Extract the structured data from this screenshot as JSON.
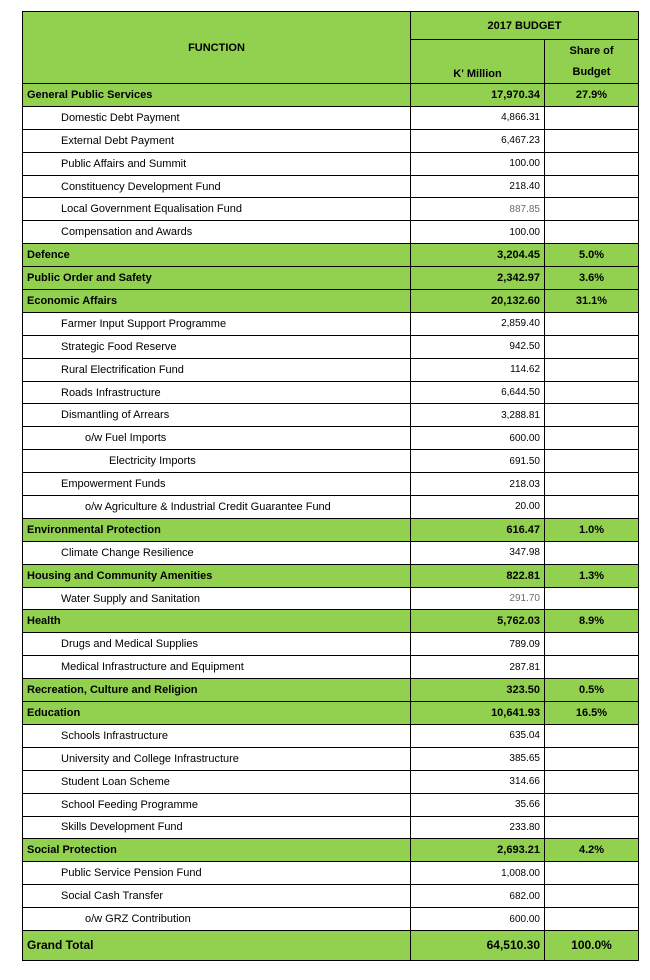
{
  "header": {
    "function_label": "FUNCTION",
    "budget_label": "2017 BUDGET",
    "kmillion_label": "K' Million",
    "share_label_1": "Share of",
    "share_label_2": "Budget"
  },
  "rows": [
    {
      "kind": "sec",
      "name": "General Public Services",
      "value": "17,970.34",
      "share": "27.9%"
    },
    {
      "kind": "det",
      "lvl": 1,
      "name": "Domestic Debt Payment",
      "value": "4,866.31"
    },
    {
      "kind": "det",
      "lvl": 1,
      "name": "External Debt Payment",
      "value": "6,467.23"
    },
    {
      "kind": "det",
      "lvl": 1,
      "name": "Public Affairs and Summit",
      "value": "100.00"
    },
    {
      "kind": "det",
      "lvl": 1,
      "name": "Constituency Development Fund",
      "value": "218.40"
    },
    {
      "kind": "det",
      "lvl": 1,
      "name": "Local Government Equalisation Fund",
      "value": "887.85",
      "grey": true
    },
    {
      "kind": "det",
      "lvl": 1,
      "name": "Compensation and Awards",
      "value": "100.00"
    },
    {
      "kind": "sec",
      "name": "Defence",
      "value": "3,204.45",
      "share": "5.0%"
    },
    {
      "kind": "sec",
      "name": "Public Order and Safety",
      "value": "2,342.97",
      "share": "3.6%"
    },
    {
      "kind": "sec",
      "name": "Economic Affairs",
      "value": "20,132.60",
      "share": "31.1%"
    },
    {
      "kind": "det",
      "lvl": 1,
      "name": "Farmer Input Support Programme",
      "value": "2,859.40"
    },
    {
      "kind": "det",
      "lvl": 1,
      "name": "Strategic Food Reserve",
      "value": "942.50"
    },
    {
      "kind": "det",
      "lvl": 1,
      "name": "Rural Electrification Fund",
      "value": "114.62"
    },
    {
      "kind": "det",
      "lvl": 1,
      "name": "Roads Infrastructure",
      "value": "6,644.50"
    },
    {
      "kind": "det",
      "lvl": 1,
      "name": "Dismantling of Arrears",
      "value": "3,288.81"
    },
    {
      "kind": "det",
      "lvl": 2,
      "name": "o/w Fuel Imports",
      "value": "600.00"
    },
    {
      "kind": "det",
      "lvl": 3,
      "name": "Electricity Imports",
      "value": "691.50"
    },
    {
      "kind": "det",
      "lvl": 1,
      "name": "Empowerment Funds",
      "value": "218.03"
    },
    {
      "kind": "det",
      "lvl": 2,
      "name": "o/w Agriculture & Industrial Credit Guarantee Fund",
      "value": "20.00"
    },
    {
      "kind": "sec",
      "name": "Environmental Protection",
      "value": "616.47",
      "share": "1.0%"
    },
    {
      "kind": "det",
      "lvl": 1,
      "name": "Climate Change Resilience",
      "value": "347.98"
    },
    {
      "kind": "sec",
      "name": "Housing and Community Amenities",
      "value": "822.81",
      "share": "1.3%"
    },
    {
      "kind": "det",
      "lvl": 1,
      "name": "Water Supply and Sanitation",
      "value": "291.70",
      "grey": true
    },
    {
      "kind": "sec",
      "name": "Health",
      "value": "5,762.03",
      "share": "8.9%"
    },
    {
      "kind": "det",
      "lvl": 1,
      "name": "Drugs and Medical Supplies",
      "value": "789.09"
    },
    {
      "kind": "det",
      "lvl": 1,
      "name": "Medical Infrastructure and Equipment",
      "value": "287.81"
    },
    {
      "kind": "sec",
      "name": "Recreation, Culture and Religion",
      "value": "323.50",
      "share": "0.5%"
    },
    {
      "kind": "sec",
      "name": "Education",
      "value": "10,641.93",
      "share": "16.5%"
    },
    {
      "kind": "det",
      "lvl": 1,
      "name": "Schools Infrastructure",
      "value": "635.04"
    },
    {
      "kind": "det",
      "lvl": 1,
      "name": "University and College Infrastructure",
      "value": "385.65"
    },
    {
      "kind": "det",
      "lvl": 1,
      "name": "Student Loan Scheme",
      "value": "314.66"
    },
    {
      "kind": "det",
      "lvl": 1,
      "name": "School Feeding Programme",
      "value": "35.66"
    },
    {
      "kind": "det",
      "lvl": 1,
      "name": "Skills Development Fund",
      "value": "233.80"
    },
    {
      "kind": "sec",
      "name": "Social Protection",
      "value": "2,693.21",
      "share": "4.2%"
    },
    {
      "kind": "det",
      "lvl": 1,
      "name": "Public Service Pension Fund",
      "value": "1,008.00"
    },
    {
      "kind": "det",
      "lvl": 1,
      "name": "Social Cash Transfer",
      "value": "682.00"
    },
    {
      "kind": "det",
      "lvl": 2,
      "name": "o/w GRZ Contribution",
      "value": "600.00"
    }
  ],
  "total": {
    "name": "Grand Total",
    "value": "64,510.30",
    "share": "100.0%"
  }
}
